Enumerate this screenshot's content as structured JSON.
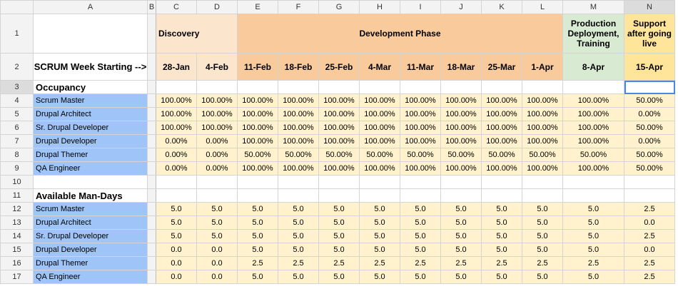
{
  "columns": [
    "A",
    "B",
    "C",
    "D",
    "E",
    "F",
    "G",
    "H",
    "I",
    "J",
    "K",
    "L",
    "M",
    "N"
  ],
  "selected_column": "N",
  "selected_row": "3",
  "phases": {
    "discovery": "Discovery",
    "development": "Development Phase",
    "production": "Production Deployment, Training",
    "support": "Support after going live"
  },
  "header_label": "SCRUM Week Starting -->",
  "weeks": [
    "28-Jan",
    "4-Feb",
    "11-Feb",
    "18-Feb",
    "25-Feb",
    "4-Mar",
    "11-Mar",
    "18-Mar",
    "25-Mar",
    "1-Apr",
    "8-Apr",
    "15-Apr"
  ],
  "sections": {
    "occupancy": "Occupancy",
    "mandays": "Available Man-Days"
  },
  "occupancy_rows": [
    {
      "row": "4",
      "role": "Scrum Master",
      "values": [
        "100.00%",
        "100.00%",
        "100.00%",
        "100.00%",
        "100.00%",
        "100.00%",
        "100.00%",
        "100.00%",
        "100.00%",
        "100.00%",
        "100.00%",
        "50.00%"
      ]
    },
    {
      "row": "5",
      "role": "Drupal Architect",
      "values": [
        "100.00%",
        "100.00%",
        "100.00%",
        "100.00%",
        "100.00%",
        "100.00%",
        "100.00%",
        "100.00%",
        "100.00%",
        "100.00%",
        "100.00%",
        "0.00%"
      ]
    },
    {
      "row": "6",
      "role": "Sr. Drupal Developer",
      "values": [
        "100.00%",
        "100.00%",
        "100.00%",
        "100.00%",
        "100.00%",
        "100.00%",
        "100.00%",
        "100.00%",
        "100.00%",
        "100.00%",
        "100.00%",
        "50.00%"
      ]
    },
    {
      "row": "7",
      "role": "Drupal Developer",
      "values": [
        "0.00%",
        "0.00%",
        "100.00%",
        "100.00%",
        "100.00%",
        "100.00%",
        "100.00%",
        "100.00%",
        "100.00%",
        "100.00%",
        "100.00%",
        "0.00%"
      ]
    },
    {
      "row": "8",
      "role": "Drupal Themer",
      "values": [
        "0.00%",
        "0.00%",
        "50.00%",
        "50.00%",
        "50.00%",
        "50.00%",
        "50.00%",
        "50.00%",
        "50.00%",
        "50.00%",
        "50.00%",
        "50.00%"
      ]
    },
    {
      "row": "9",
      "role": "QA Engineer",
      "values": [
        "0.00%",
        "0.00%",
        "100.00%",
        "100.00%",
        "100.00%",
        "100.00%",
        "100.00%",
        "100.00%",
        "100.00%",
        "100.00%",
        "100.00%",
        "50.00%"
      ]
    }
  ],
  "mandays_rows": [
    {
      "row": "12",
      "role": "Scrum Master",
      "values": [
        "5.0",
        "5.0",
        "5.0",
        "5.0",
        "5.0",
        "5.0",
        "5.0",
        "5.0",
        "5.0",
        "5.0",
        "5.0",
        "2.5"
      ]
    },
    {
      "row": "13",
      "role": "Drupal Architect",
      "values": [
        "5.0",
        "5.0",
        "5.0",
        "5.0",
        "5.0",
        "5.0",
        "5.0",
        "5.0",
        "5.0",
        "5.0",
        "5.0",
        "0.0"
      ]
    },
    {
      "row": "14",
      "role": "Sr. Drupal Developer",
      "values": [
        "5.0",
        "5.0",
        "5.0",
        "5.0",
        "5.0",
        "5.0",
        "5.0",
        "5.0",
        "5.0",
        "5.0",
        "5.0",
        "2.5"
      ]
    },
    {
      "row": "15",
      "role": "Drupal Developer",
      "values": [
        "0.0",
        "0.0",
        "5.0",
        "5.0",
        "5.0",
        "5.0",
        "5.0",
        "5.0",
        "5.0",
        "5.0",
        "5.0",
        "0.0"
      ]
    },
    {
      "row": "16",
      "role": "Drupal Themer",
      "values": [
        "0.0",
        "0.0",
        "2.5",
        "2.5",
        "2.5",
        "2.5",
        "2.5",
        "2.5",
        "2.5",
        "2.5",
        "2.5",
        "2.5"
      ]
    },
    {
      "row": "17",
      "role": "QA Engineer",
      "values": [
        "0.0",
        "0.0",
        "5.0",
        "5.0",
        "5.0",
        "5.0",
        "5.0",
        "5.0",
        "5.0",
        "5.0",
        "5.0",
        "2.5"
      ]
    }
  ],
  "blank_rows": [
    "10"
  ],
  "row_numbers": {
    "r1": "1",
    "r2": "2",
    "r3": "3",
    "r11": "11"
  },
  "colors": {
    "discovery": "#fce5cd",
    "development": "#f9cb9c",
    "production": "#d9ead3",
    "support": "#ffe599",
    "value_fill": "#fff2cc",
    "role_fill": "#9fc5f8",
    "selection": "#4a86e8"
  }
}
